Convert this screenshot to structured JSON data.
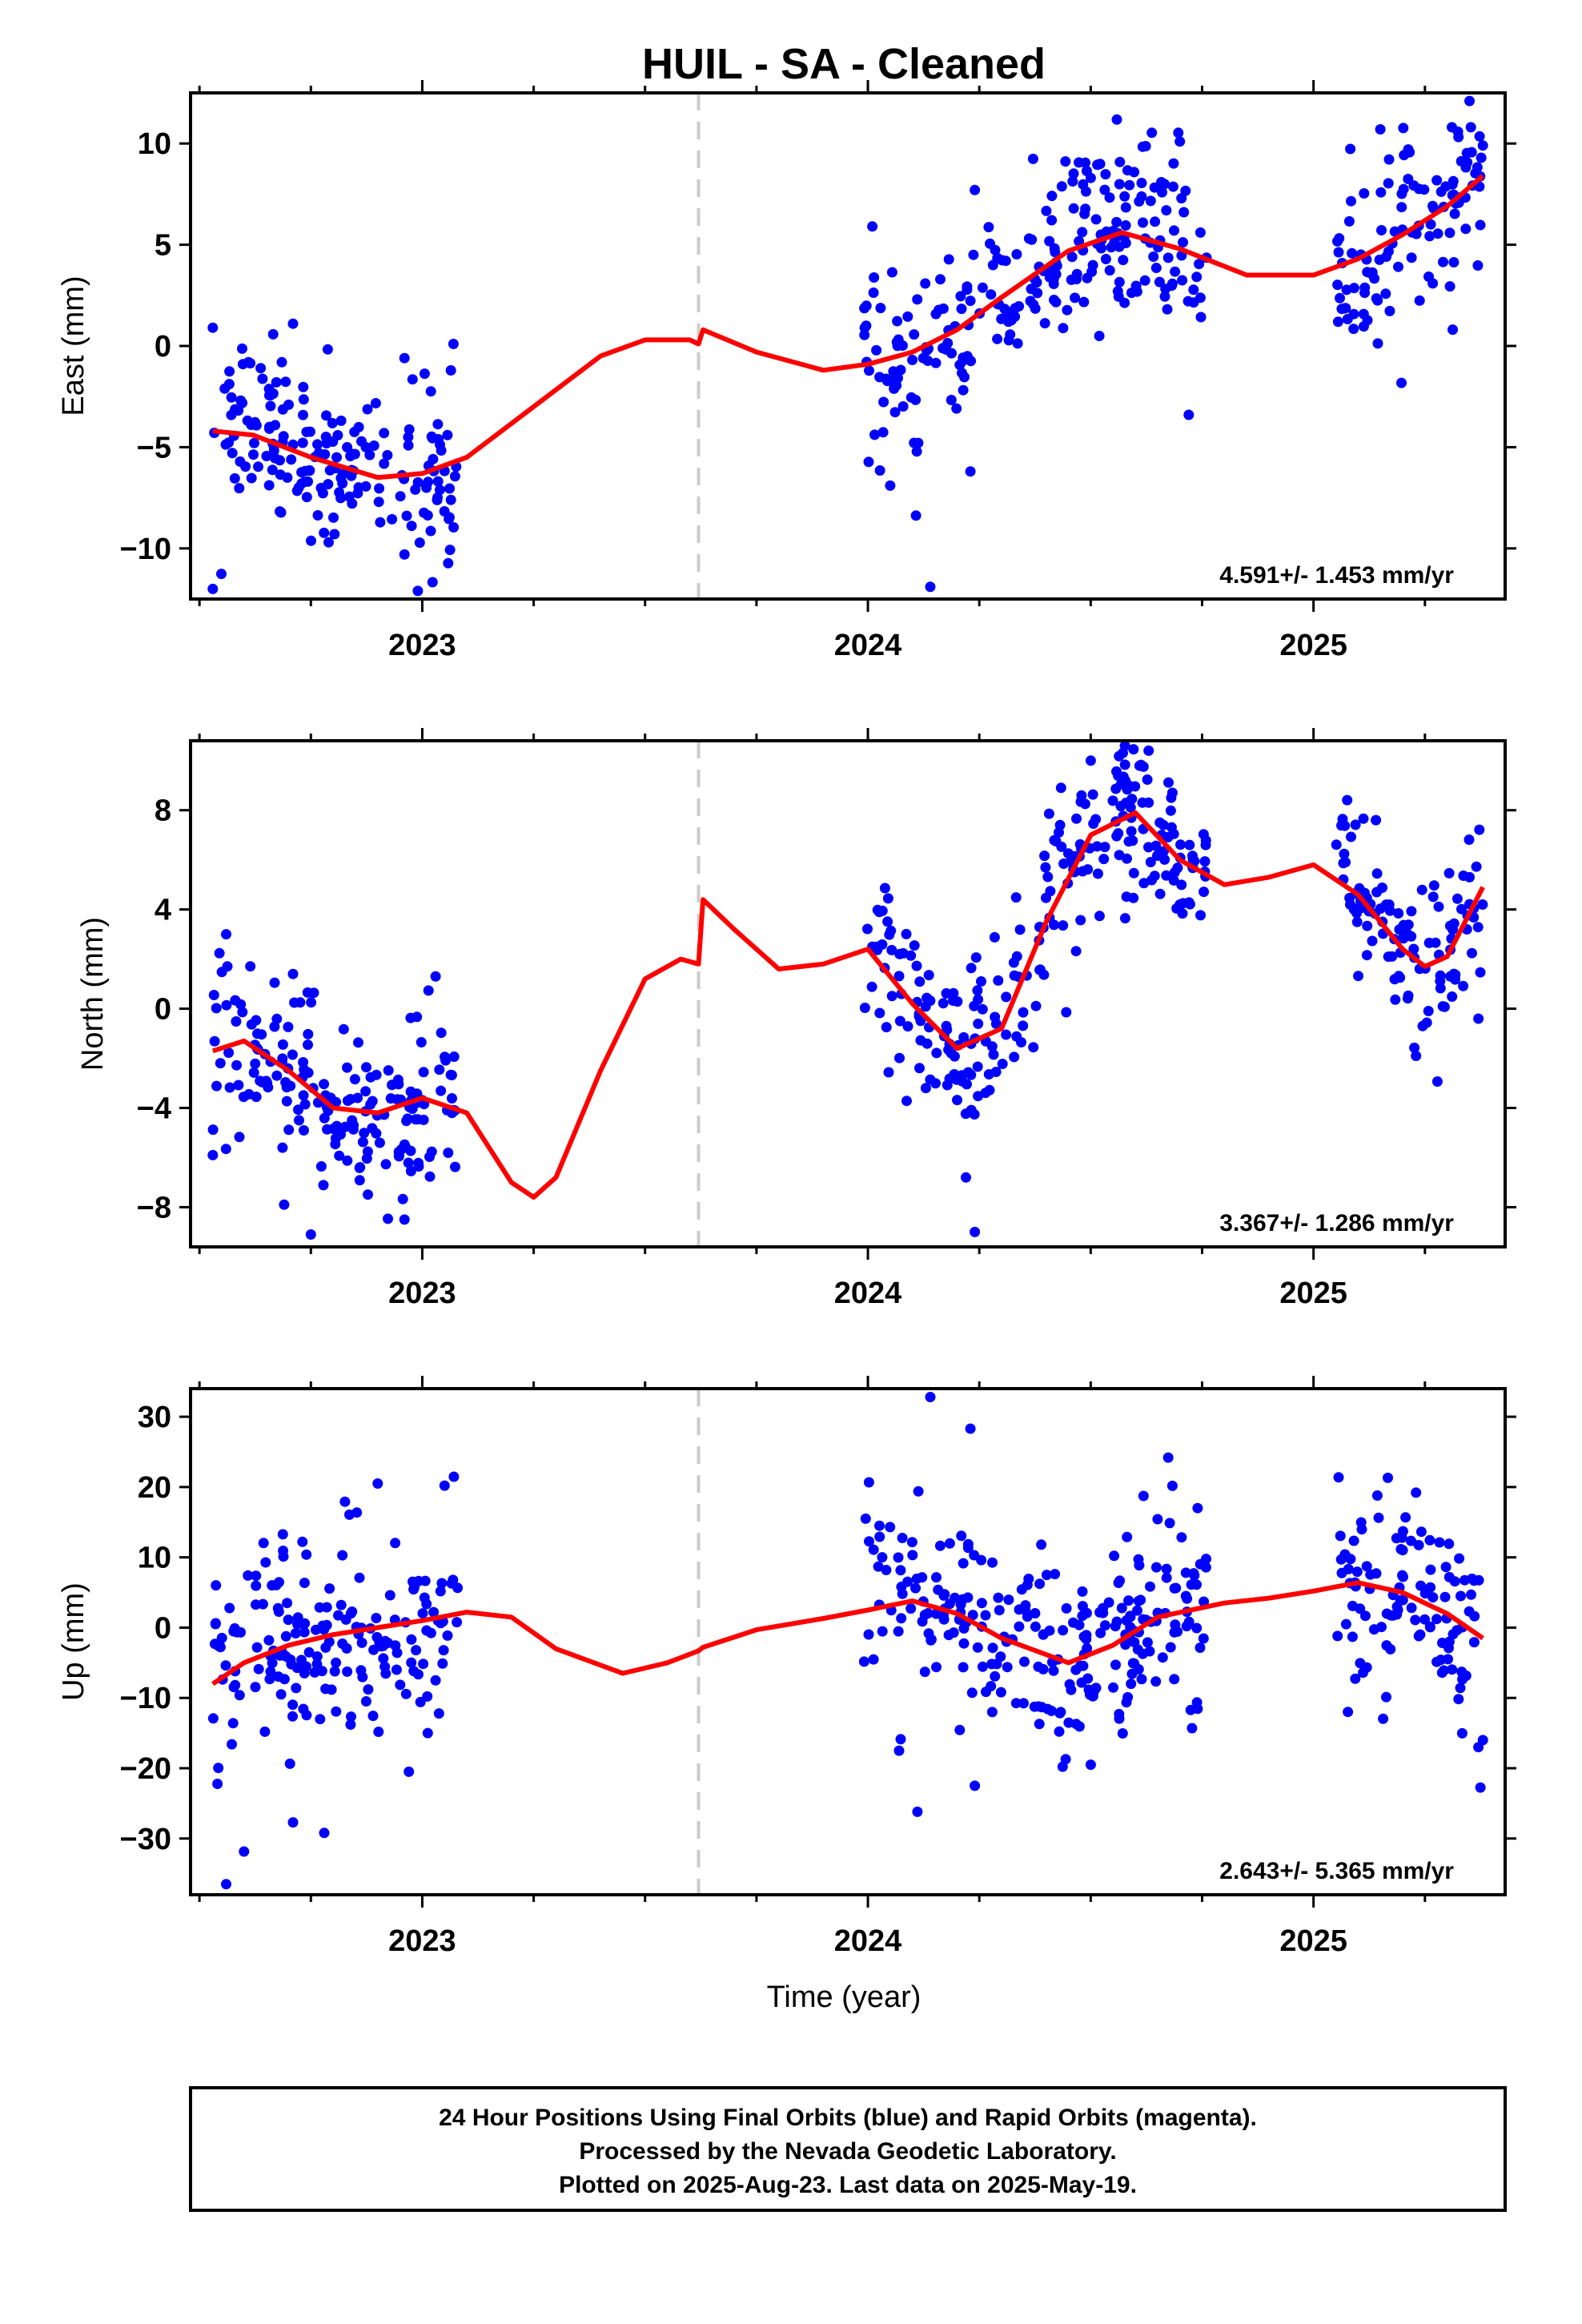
{
  "title": "HUIL  - SA - Cleaned",
  "xlabel": "Time (year)",
  "colors": {
    "points": "#0000ff",
    "model": "#ff0000",
    "break": "#cccccc",
    "frame": "#000000"
  },
  "footer": {
    "line1": "24 Hour Positions Using Final Orbits (blue) and Rapid Orbits (magenta).",
    "line2": "Processed by the Nevada Geodetic Laboratory.",
    "line3": "Plotted on 2025-Aug-23. Last data on 2025-May-19."
  },
  "chart_data": [
    {
      "type": "scatter",
      "component": "east",
      "ylabel": "East (mm)",
      "rate_text": "4.591+/- 1.453 mm/yr",
      "xlim": [
        2022.48,
        2025.43
      ],
      "ylim": [
        -12.5,
        12.5
      ],
      "xticks": [
        2023,
        2024,
        2025
      ],
      "yticks": [
        -10,
        -5,
        0,
        5,
        10
      ],
      "break_x": 2023.62,
      "data_ranges": [
        [
          2022.53,
          2023.08
        ],
        [
          2023.99,
          2024.76
        ],
        [
          2025.05,
          2025.38
        ]
      ],
      "model_line": {
        "x": [
          2022.53,
          2022.62,
          2022.75,
          2022.9,
          2023.0,
          2023.1,
          2023.25,
          2023.4,
          2023.5,
          2023.6,
          2023.62,
          2023.63,
          2023.75,
          2023.9,
          2024.0,
          2024.1,
          2024.2,
          2024.3,
          2024.45,
          2024.57,
          2024.7,
          2024.85,
          2025.0,
          2025.1,
          2025.2,
          2025.3,
          2025.38
        ],
        "y": [
          -4.2,
          -4.4,
          -5.5,
          -6.5,
          -6.3,
          -5.5,
          -3.0,
          -0.5,
          0.3,
          0.3,
          0.1,
          0.8,
          -0.3,
          -1.2,
          -0.9,
          -0.3,
          0.8,
          2.4,
          4.7,
          5.6,
          4.8,
          3.5,
          3.5,
          4.3,
          5.5,
          6.9,
          8.4
        ]
      },
      "sample_points": [
        {
          "x": 2022.53,
          "y": -12.0
        },
        {
          "x": 2022.53,
          "y": 0.9
        },
        {
          "x": 2022.61,
          "y": -0.8
        },
        {
          "x": 2022.71,
          "y": 1.1
        },
        {
          "x": 2022.79,
          "y": -9.7
        },
        {
          "x": 2022.96,
          "y": -10.3
        },
        {
          "x": 2022.96,
          "y": -0.6
        },
        {
          "x": 2022.99,
          "y": -12.1
        },
        {
          "x": 2023.07,
          "y": 0.1
        },
        {
          "x": 2024.01,
          "y": 5.9
        },
        {
          "x": 2024.05,
          "y": -6.9
        },
        {
          "x": 2024.14,
          "y": -11.9
        },
        {
          "x": 2024.23,
          "y": -6.2
        },
        {
          "x": 2024.24,
          "y": 7.7
        },
        {
          "x": 2024.5,
          "y": 8.3
        },
        {
          "x": 2024.7,
          "y": 10.1
        },
        {
          "x": 2024.72,
          "y": -3.4
        },
        {
          "x": 2025.15,
          "y": 10.7
        },
        {
          "x": 2025.35,
          "y": 12.1
        },
        {
          "x": 2025.38,
          "y": 9.9
        }
      ]
    },
    {
      "type": "scatter",
      "component": "north",
      "ylabel": "North (mm)",
      "rate_text": "3.367+/- 1.286 mm/yr",
      "xlim": [
        2022.48,
        2025.43
      ],
      "ylim": [
        -9.6,
        10.8
      ],
      "xticks": [
        2023,
        2024,
        2025
      ],
      "yticks": [
        -8,
        -4,
        0,
        4,
        8
      ],
      "break_x": 2023.62,
      "data_ranges": [
        [
          2022.53,
          2023.08
        ],
        [
          2023.99,
          2024.76
        ],
        [
          2025.05,
          2025.38
        ]
      ],
      "model_line": {
        "x": [
          2022.53,
          2022.6,
          2022.7,
          2022.8,
          2022.9,
          2023.0,
          2023.1,
          2023.2,
          2023.25,
          2023.3,
          2023.4,
          2023.5,
          2023.58,
          2023.62,
          2023.63,
          2023.7,
          2023.8,
          2023.9,
          2024.0,
          2024.1,
          2024.2,
          2024.3,
          2024.4,
          2024.5,
          2024.6,
          2024.7,
          2024.8,
          2024.9,
          2025.0,
          2025.1,
          2025.2,
          2025.25,
          2025.3,
          2025.38
        ],
        "y": [
          -1.7,
          -1.3,
          -2.5,
          -4.0,
          -4.2,
          -3.6,
          -4.2,
          -7.0,
          -7.6,
          -6.8,
          -2.5,
          1.2,
          2.0,
          1.8,
          4.4,
          3.2,
          1.6,
          1.8,
          2.4,
          0.2,
          -1.6,
          -0.8,
          3.5,
          7.0,
          7.9,
          6.0,
          5.0,
          5.3,
          5.8,
          4.6,
          2.4,
          1.7,
          2.1,
          4.9
        ]
      },
      "sample_points": [
        {
          "x": 2022.53,
          "y": -5.9
        },
        {
          "x": 2022.56,
          "y": 3.0
        },
        {
          "x": 2022.71,
          "y": 1.4
        },
        {
          "x": 2022.69,
          "y": -7.9
        },
        {
          "x": 2022.75,
          "y": -9.1
        },
        {
          "x": 2022.96,
          "y": -8.5
        },
        {
          "x": 2023.03,
          "y": 1.3
        },
        {
          "x": 2024.01,
          "y": 2.5
        },
        {
          "x": 2024.13,
          "y": -3.2
        },
        {
          "x": 2024.22,
          "y": -6.8
        },
        {
          "x": 2024.24,
          "y": -9.0
        },
        {
          "x": 2024.5,
          "y": 10.0
        },
        {
          "x": 2024.63,
          "y": 10.4
        },
        {
          "x": 2024.7,
          "y": 4.2
        },
        {
          "x": 2025.14,
          "y": 7.6
        },
        {
          "x": 2025.23,
          "y": -1.9
        },
        {
          "x": 2025.35,
          "y": 5.3
        },
        {
          "x": 2025.37,
          "y": -0.4
        }
      ]
    },
    {
      "type": "scatter",
      "component": "up",
      "ylabel": "Up (mm)",
      "rate_text": "2.643+/- 5.365 mm/yr",
      "xlim": [
        2022.48,
        2025.43
      ],
      "ylim": [
        -38,
        34
      ],
      "xticks": [
        2023,
        2024,
        2025
      ],
      "yticks": [
        -30,
        -20,
        -10,
        0,
        10,
        20,
        30
      ],
      "break_x": 2023.62,
      "data_ranges": [
        [
          2022.53,
          2023.08
        ],
        [
          2023.99,
          2024.76
        ],
        [
          2025.05,
          2025.38
        ]
      ],
      "model_line": {
        "x": [
          2022.53,
          2022.6,
          2022.7,
          2022.8,
          2022.9,
          2023.0,
          2023.1,
          2023.2,
          2023.3,
          2023.45,
          2023.55,
          2023.62,
          2023.63,
          2023.75,
          2023.9,
          2024.0,
          2024.1,
          2024.2,
          2024.3,
          2024.45,
          2024.55,
          2024.65,
          2024.8,
          2024.9,
          2025.0,
          2025.1,
          2025.2,
          2025.3,
          2025.38
        ],
        "y": [
          -8.0,
          -5.0,
          -2.5,
          -1.0,
          0.0,
          1.0,
          2.2,
          1.5,
          -3.0,
          -6.5,
          -5.0,
          -3.3,
          -2.8,
          -0.3,
          1.3,
          2.5,
          3.8,
          2.0,
          -1.5,
          -5.0,
          -2.5,
          1.5,
          3.5,
          4.2,
          5.2,
          6.4,
          5.0,
          2.0,
          -1.5
        ]
      },
      "sample_points": [
        {
          "x": 2022.56,
          "y": -36.5
        },
        {
          "x": 2022.71,
          "y": -27.7
        },
        {
          "x": 2022.78,
          "y": -29.2
        },
        {
          "x": 2022.9,
          "y": 20.5
        },
        {
          "x": 2023.05,
          "y": 20.2
        },
        {
          "x": 2022.97,
          "y": -20.5
        },
        {
          "x": 2024.14,
          "y": 32.8
        },
        {
          "x": 2024.23,
          "y": 28.3
        },
        {
          "x": 2024.24,
          "y": -22.5
        },
        {
          "x": 2024.07,
          "y": -17.5
        },
        {
          "x": 2024.5,
          "y": -19.5
        },
        {
          "x": 2024.74,
          "y": 17.0
        },
        {
          "x": 2025.23,
          "y": 19.2
        },
        {
          "x": 2025.37,
          "y": -17.0
        },
        {
          "x": 2025.38,
          "y": -16.0
        }
      ]
    }
  ]
}
